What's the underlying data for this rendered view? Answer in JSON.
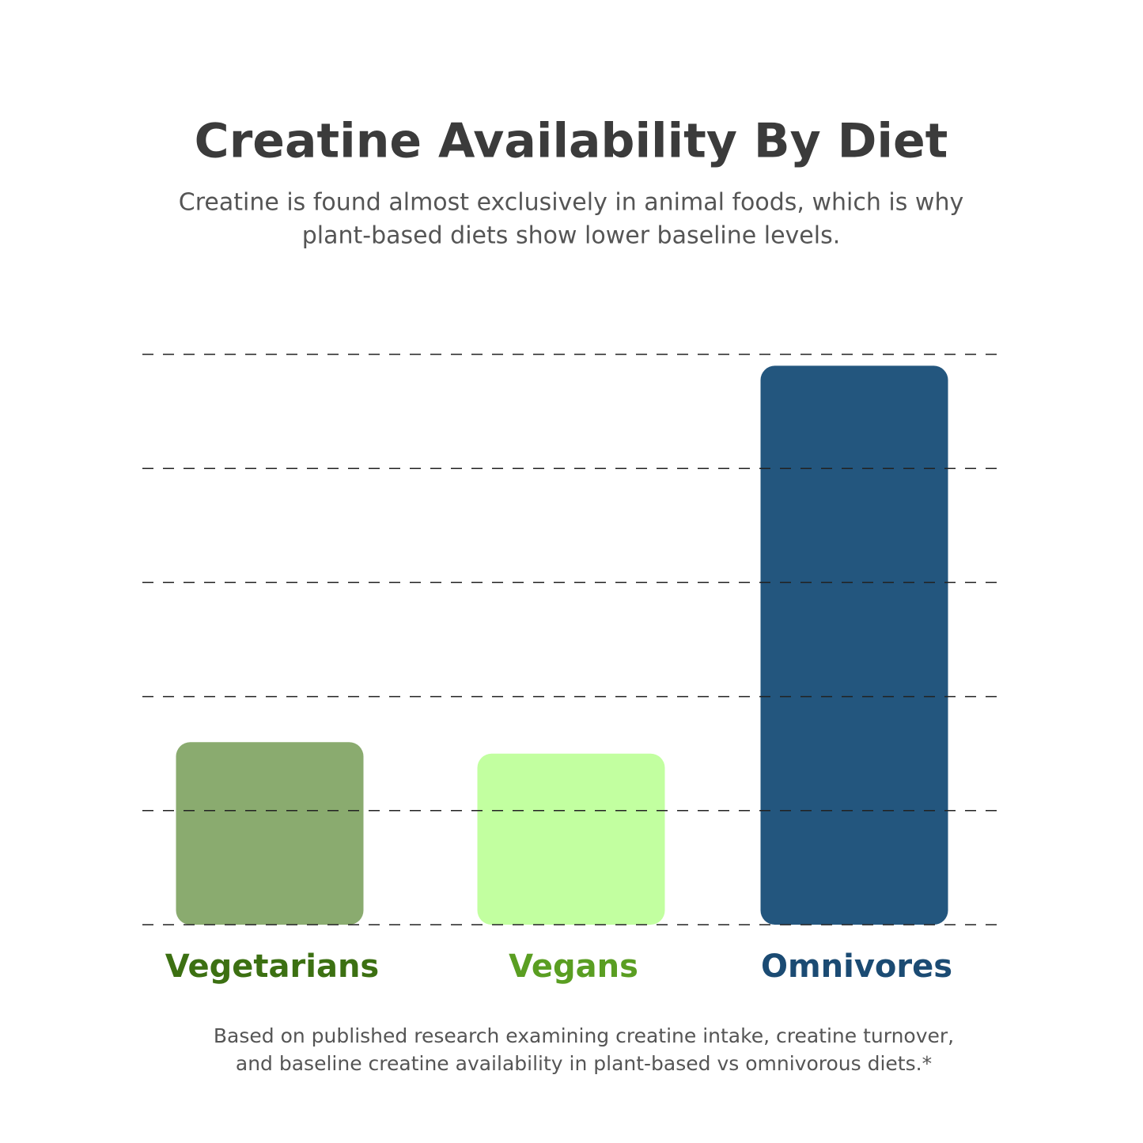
{
  "chart_data": {
    "type": "bar",
    "title": "Creatine Availability By Diet",
    "subtitle": [
      "Creatine is found almost exclusively in animal foods, which is why",
      "plant-based diets show lower baseline levels."
    ],
    "categories": [
      "Vegetarians",
      "Vegans",
      "Omnivores"
    ],
    "values": [
      1.6,
      1.5,
      4.9
    ],
    "colors": [
      "#8aab6f",
      "#c2ffa0",
      "#23567e"
    ],
    "label_colors": [
      "#3c7012",
      "#5a9e22",
      "#1b4b73"
    ],
    "ylim": [
      0,
      5
    ],
    "yticks": [
      0,
      1,
      2,
      3,
      4,
      5
    ],
    "grid": true,
    "footnote": [
      "Based on published research examining creatine intake, creatine turnover,",
      "and baseline creatine availability in plant-based vs omnivorous diets.*"
    ]
  }
}
